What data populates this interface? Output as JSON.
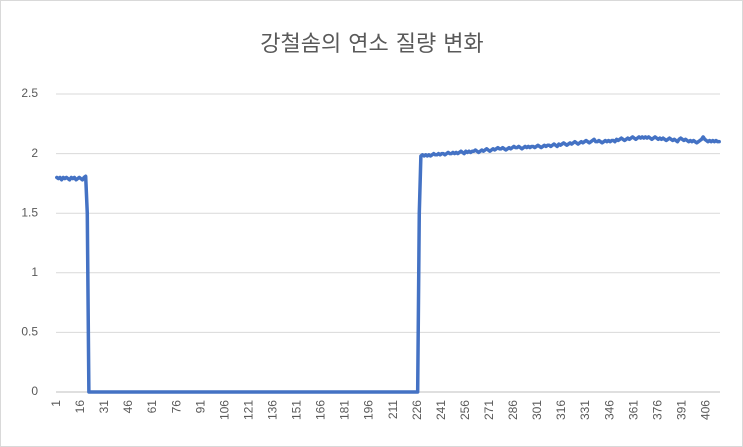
{
  "chart_data": {
    "type": "line",
    "title": "강철솜의 연소 질량 변화",
    "categories": [
      1,
      null,
      null,
      null,
      null,
      null,
      null,
      null,
      null,
      null,
      null,
      null,
      null,
      null,
      null,
      16,
      null,
      null,
      null,
      null,
      null,
      null,
      null,
      null,
      null,
      null,
      null,
      null,
      null,
      null,
      31,
      null,
      null,
      null,
      null,
      null,
      null,
      null,
      null,
      null,
      null,
      null,
      null,
      null,
      null,
      46,
      null,
      null,
      null,
      null,
      null,
      null,
      null,
      null,
      null,
      null,
      null,
      null,
      null,
      null,
      61,
      null,
      null,
      null,
      null,
      null,
      null,
      null,
      null,
      null,
      null,
      null,
      null,
      null,
      null,
      76,
      null,
      null,
      null,
      null,
      null,
      null,
      null,
      null,
      null,
      null,
      null,
      null,
      null,
      null,
      91,
      null,
      null,
      null,
      null,
      null,
      null,
      null,
      null,
      null,
      null,
      null,
      null,
      null,
      null,
      106,
      null,
      null,
      null,
      null,
      null,
      null,
      null,
      null,
      null,
      null,
      null,
      null,
      null,
      null,
      121,
      null,
      null,
      null,
      null,
      null,
      null,
      null,
      null,
      null,
      null,
      null,
      null,
      null,
      null,
      136,
      null,
      null,
      null,
      null,
      null,
      null,
      null,
      null,
      null,
      null,
      null,
      null,
      null,
      null,
      151,
      null,
      null,
      null,
      null,
      null,
      null,
      null,
      null,
      null,
      null,
      null,
      null,
      null,
      null,
      166,
      null,
      null,
      null,
      null,
      null,
      null,
      null,
      null,
      null,
      null,
      null,
      null,
      null,
      null,
      181,
      null,
      null,
      null,
      null,
      null,
      null,
      null,
      null,
      null,
      null,
      null,
      null,
      null,
      null,
      196,
      null,
      null,
      null,
      null,
      null,
      null,
      null,
      null,
      null,
      null,
      null,
      null,
      null,
      null,
      211,
      null,
      null,
      null,
      null,
      null,
      null,
      null,
      null,
      null,
      null,
      null,
      null,
      null,
      null,
      226,
      null,
      null,
      null,
      null,
      null,
      null,
      null,
      null,
      null,
      null,
      null,
      null,
      null,
      null,
      241,
      null,
      null,
      null,
      null,
      null,
      null,
      null,
      null,
      null,
      null,
      null,
      null,
      null,
      null,
      256,
      null,
      null,
      null,
      null,
      null,
      null,
      null,
      null,
      null,
      null,
      null,
      null,
      null,
      null,
      271,
      null,
      null,
      null,
      null,
      null,
      null,
      null,
      null,
      null,
      null,
      null,
      null,
      null,
      null,
      286,
      null,
      null,
      null,
      null,
      null,
      null,
      null,
      null,
      null,
      null,
      null,
      null,
      null,
      null,
      301,
      null,
      null,
      null,
      null,
      null,
      null,
      null,
      null,
      null,
      null,
      null,
      null,
      null,
      null,
      316,
      null,
      null,
      null,
      null,
      null,
      null,
      null,
      null,
      null,
      null,
      null,
      null,
      null,
      null,
      331,
      null,
      null,
      null,
      null,
      null,
      null,
      null,
      null,
      null,
      null,
      null,
      null,
      null,
      null,
      346,
      null,
      null,
      null,
      null,
      null,
      null,
      null,
      null,
      null,
      null,
      null,
      null,
      null,
      null,
      361,
      null,
      null,
      null,
      null,
      null,
      null,
      null,
      null,
      null,
      null,
      null,
      null,
      null,
      null,
      376,
      null,
      null,
      null,
      null,
      null,
      null,
      null,
      null,
      null,
      null,
      null,
      null,
      null,
      null,
      391,
      null,
      null,
      null,
      null,
      null,
      null,
      null,
      null,
      null,
      null,
      null,
      null,
      null,
      null,
      406,
      null,
      null,
      null,
      null,
      null,
      null,
      null,
      null
    ],
    "values": [
      1.8,
      1.79,
      1.8,
      1.78,
      1.8,
      1.79,
      1.8,
      1.79,
      1.78,
      1.8,
      1.79,
      1.8,
      1.78,
      1.79,
      1.8,
      1.79,
      1.78,
      1.8,
      1.81,
      1.5,
      0,
      0,
      0,
      0,
      0,
      0,
      0,
      0,
      0,
      0,
      0,
      0,
      0,
      0,
      0,
      0,
      0,
      0,
      0,
      0,
      0,
      0,
      0,
      0,
      0,
      0,
      0,
      0,
      0,
      0,
      0,
      0,
      0,
      0,
      0,
      0,
      0,
      0,
      0,
      0,
      0,
      0,
      0,
      0,
      0,
      0,
      0,
      0,
      0,
      0,
      0,
      0,
      0,
      0,
      0,
      0,
      0,
      0,
      0,
      0,
      0,
      0,
      0,
      0,
      0,
      0,
      0,
      0,
      0,
      0,
      0,
      0,
      0,
      0,
      0,
      0,
      0,
      0,
      0,
      0,
      0,
      0,
      0,
      0,
      0,
      0,
      0,
      0,
      0,
      0,
      0,
      0,
      0,
      0,
      0,
      0,
      0,
      0,
      0,
      0,
      0,
      0,
      0,
      0,
      0,
      0,
      0,
      0,
      0,
      0,
      0,
      0,
      0,
      0,
      0,
      0,
      0,
      0,
      0,
      0,
      0,
      0,
      0,
      0,
      0,
      0,
      0,
      0,
      0,
      0,
      0,
      0,
      0,
      0,
      0,
      0,
      0,
      0,
      0,
      0,
      0,
      0,
      0,
      0,
      0,
      0,
      0,
      0,
      0,
      0,
      0,
      0,
      0,
      0,
      0,
      0,
      0,
      0,
      0,
      0,
      0,
      0,
      0,
      0,
      0,
      0,
      0,
      0,
      0,
      0,
      0,
      0,
      0,
      0,
      0,
      0,
      0,
      0,
      0,
      0,
      0,
      0,
      0,
      0,
      0,
      0,
      0,
      0,
      0,
      0,
      0,
      0,
      0,
      0,
      0,
      0,
      0,
      0,
      0,
      0,
      0,
      0,
      0,
      0,
      0,
      0,
      1.5,
      1.98,
      1.99,
      1.98,
      1.99,
      1.98,
      1.99,
      1.98,
      1.99,
      2.0,
      1.99,
      1.99,
      2.0,
      1.99,
      2.0,
      2.0,
      1.99,
      2.0,
      2.01,
      2.0,
      2.0,
      2.01,
      2.0,
      2.01,
      2.0,
      2.01,
      2.02,
      2.01,
      2.0,
      2.02,
      2.01,
      2.02,
      2.01,
      2.02,
      2.02,
      2.03,
      2.02,
      2.01,
      2.02,
      2.03,
      2.02,
      2.03,
      2.04,
      2.03,
      2.02,
      2.03,
      2.04,
      2.03,
      2.04,
      2.05,
      2.04,
      2.04,
      2.05,
      2.04,
      2.03,
      2.04,
      2.05,
      2.04,
      2.05,
      2.06,
      2.05,
      2.05,
      2.06,
      2.05,
      2.04,
      2.05,
      2.06,
      2.05,
      2.06,
      2.05,
      2.06,
      2.06,
      2.05,
      2.06,
      2.07,
      2.06,
      2.05,
      2.06,
      2.07,
      2.06,
      2.07,
      2.07,
      2.06,
      2.07,
      2.08,
      2.07,
      2.06,
      2.08,
      2.07,
      2.08,
      2.09,
      2.08,
      2.07,
      2.08,
      2.09,
      2.08,
      2.09,
      2.1,
      2.09,
      2.08,
      2.09,
      2.1,
      2.09,
      2.1,
      2.11,
      2.1,
      2.09,
      2.1,
      2.11,
      2.12,
      2.1,
      2.1,
      2.11,
      2.1,
      2.09,
      2.1,
      2.11,
      2.1,
      2.11,
      2.1,
      2.11,
      2.11,
      2.1,
      2.12,
      2.11,
      2.12,
      2.13,
      2.12,
      2.11,
      2.12,
      2.13,
      2.12,
      2.13,
      2.14,
      2.13,
      2.12,
      2.13,
      2.14,
      2.13,
      2.14,
      2.13,
      2.14,
      2.13,
      2.14,
      2.13,
      2.12,
      2.13,
      2.14,
      2.13,
      2.12,
      2.13,
      2.12,
      2.13,
      2.12,
      2.11,
      2.12,
      2.13,
      2.12,
      2.11,
      2.12,
      2.11,
      2.1,
      2.12,
      2.13,
      2.12,
      2.11,
      2.12,
      2.11,
      2.1,
      2.11,
      2.1,
      2.11,
      2.1,
      2.09,
      2.1,
      2.11,
      2.12,
      2.14,
      2.12,
      2.11,
      2.1,
      2.11,
      2.1,
      2.11,
      2.1,
      2.11,
      2.1,
      2.1
    ],
    "color": "#4472c4",
    "ylim": [
      0,
      2.5
    ],
    "yticks": [
      0,
      0.5,
      1,
      1.5,
      2,
      2.5
    ],
    "grid": true
  }
}
